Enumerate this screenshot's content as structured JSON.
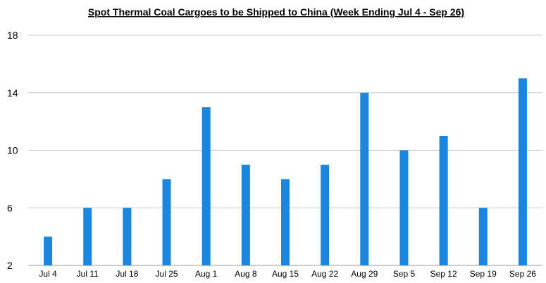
{
  "chart_data": {
    "type": "bar",
    "title": "Spot Thermal Coal Cargoes to be Shipped to China (Week Ending Jul 4 -  Sep 26)",
    "xlabel": "",
    "ylabel": "",
    "categories": [
      "Jul 4",
      "Jul 11",
      "Jul 18",
      "Jul 25",
      "Aug 1",
      "Aug 8",
      "Aug 15",
      "Aug 22",
      "Aug 29",
      "Sep 5",
      "Sep 12",
      "Sep 19",
      "Sep 26"
    ],
    "values": [
      4,
      6,
      6,
      8,
      13,
      9,
      8,
      9,
      14,
      10,
      11,
      6,
      15
    ],
    "ylim": [
      2,
      18
    ],
    "yticks": [
      2,
      6,
      10,
      14,
      18
    ],
    "grid": true,
    "legend": "none",
    "bar_color": "#1a86e0",
    "grid_color": "#c8c8c8"
  }
}
